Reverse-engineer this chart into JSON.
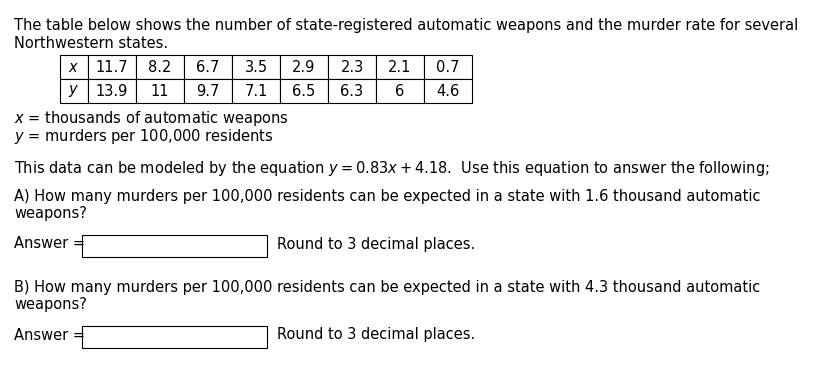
{
  "title_line1": "The table below shows the number of state-registered automatic weapons and the murder rate for several",
  "title_line2": "Northwestern states.",
  "x_values": [
    "11.7",
    "8.2",
    "6.7",
    "3.5",
    "2.9",
    "2.3",
    "2.1",
    "0.7"
  ],
  "y_values": [
    "13.9",
    "11",
    "9.7",
    "7.1",
    "6.5",
    "6.3",
    "6",
    "4.6"
  ],
  "x_label_italic": "x",
  "x_label_rest": " = thousands of automatic weapons",
  "y_label_italic": "y",
  "y_label_rest": " = murders per 100,000 residents",
  "equation_text": "This data can be modeled by the equation $y = 0.83x + 4.18$.  Use this equation to answer the following;",
  "q_a_text1": "A) How many murders per 100,000 residents can be expected in a state with 1.6 thousand automatic",
  "q_a_text2": "weapons?",
  "q_b_text1": "B) How many murders per 100,000 residents can be expected in a state with 4.3 thousand automatic",
  "q_b_text2": "weapons?",
  "answer_label": "Answer = ",
  "round_text": "Round to 3 decimal places.",
  "bg_color": "#ffffff",
  "text_color": "#000000",
  "font_size": 10.5,
  "fig_width": 8.28,
  "fig_height": 3.76,
  "dpi": 100
}
